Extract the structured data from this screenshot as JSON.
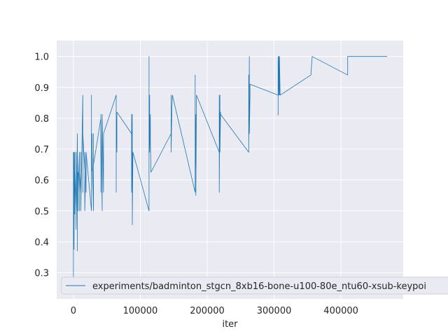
{
  "chart_data": {
    "type": "line",
    "title": "",
    "xlabel": "iter",
    "ylabel": "",
    "xlim": [
      -25000,
      493000
    ],
    "ylim": [
      0.215,
      1.0515
    ],
    "grid": true,
    "legend": {
      "placement": "lower-left",
      "entries": [
        "experiments/badminton_stgcn_8xb16-bone-u100-80e_ntu60-xsub-keypoi"
      ]
    },
    "x_ticks": [
      0,
      100000,
      200000,
      300000,
      400000
    ],
    "x_tick_labels": [
      "0",
      "100000",
      "200000",
      "300000",
      "400000"
    ],
    "y_ticks": [
      0.3,
      0.4,
      0.5,
      0.6,
      0.7,
      0.8,
      0.9,
      1.0
    ],
    "y_tick_labels": [
      "0.3",
      "0.4",
      "0.5",
      "0.6",
      "0.7",
      "0.8",
      "0.9",
      "1.0"
    ],
    "series": [
      {
        "name": "experiments/badminton_stgcn_8xb16-bone-u100-80e_ntu60-xsub-keypoi",
        "color": "#1f77b4",
        "x": [
          0,
          0,
          0,
          0,
          1000,
          1000,
          1000,
          2000,
          2000,
          2000,
          4000,
          4000,
          4000,
          6000,
          6000,
          6000,
          7000,
          7000,
          7000,
          9000,
          9000,
          9000,
          11000,
          11000,
          11000,
          14000,
          14000,
          14000,
          17000,
          17000,
          17000,
          19000,
          19000,
          19000,
          27000,
          27000,
          27000,
          28000,
          28000,
          28000,
          30000,
          30000,
          30000,
          41000,
          41000,
          41000,
          43000,
          43000,
          43000,
          45000,
          45000,
          64000,
          64000,
          64000,
          65000,
          65000,
          87000,
          87000,
          87000,
          88000,
          88000,
          89000,
          113000,
          113000,
          113000,
          114000,
          114000,
          115000,
          115000,
          116000,
          146000,
          146000,
          146000,
          147000,
          147000,
          148000,
          148000,
          182000,
          182000,
          182000,
          183000,
          183000,
          184000,
          218000,
          218000,
          218000,
          219000,
          219000,
          220000,
          220000,
          262000,
          262000,
          262000,
          263000,
          263000,
          264000,
          264000,
          306000,
          306000,
          306000,
          307000,
          307000,
          308000,
          308000,
          309000,
          355000,
          357000,
          357000,
          410000,
          410000,
          411000,
          469000
        ],
        "y": [
          0.28,
          0.62,
          0.32,
          0.69,
          0.375,
          0.69,
          0.43,
          0.69,
          0.49,
          0.63,
          0.5,
          0.69,
          0.44,
          0.75,
          0.37,
          0.69,
          0.5,
          0.625,
          0.56,
          0.69,
          0.5,
          0.625,
          0.56,
          0.69,
          0.5,
          0.875,
          0.56,
          0.75,
          0.63,
          0.69,
          0.5,
          0.69,
          0.56,
          0.69,
          0.5,
          0.875,
          0.56,
          0.75,
          0.63,
          0.69,
          0.5,
          0.75,
          0.65,
          0.8,
          0.56,
          0.8125,
          0.5,
          0.73,
          0.8125,
          0.56,
          0.75,
          0.875,
          0.56,
          0.8125,
          0.69,
          0.82,
          0.75,
          0.8125,
          0.56,
          0.8125,
          0.455,
          0.69,
          0.5,
          1.0,
          0.69,
          0.875,
          0.69,
          0.8125,
          0.73,
          0.625,
          0.75,
          0.875,
          0.69,
          0.8125,
          0.82,
          0.875,
          0.875,
          0.56,
          0.94,
          0.625,
          0.8125,
          0.55,
          0.875,
          0.69,
          0.875,
          0.56,
          0.875,
          0.69,
          0.82,
          0.8125,
          0.69,
          0.94,
          0.69,
          1.0,
          0.75,
          0.875,
          0.91,
          0.875,
          0.81,
          1.0,
          0.875,
          1.0,
          0.875,
          1.0,
          0.875,
          0.94,
          1.0,
          1.0,
          0.94,
          1.0,
          1.0,
          1.0
        ]
      }
    ]
  }
}
